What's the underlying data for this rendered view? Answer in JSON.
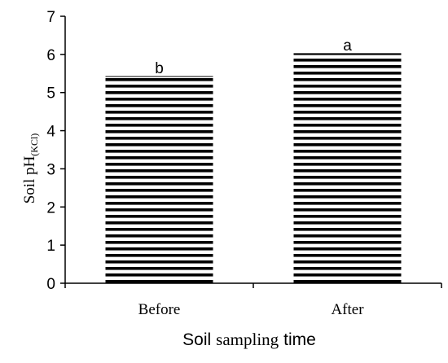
{
  "chart_data": {
    "type": "bar",
    "categories": [
      "Before",
      "After"
    ],
    "values": [
      5.42,
      6.02
    ],
    "significance_letters": [
      "b",
      "a"
    ],
    "ylim": [
      0,
      7
    ],
    "yticks": [
      0,
      1,
      2,
      3,
      4,
      5,
      6,
      7
    ],
    "ylabel": {
      "main": "Soil pH",
      "subscript": "(KCl)"
    },
    "xlabel": {
      "part1": "Soil",
      "part2": "sampling",
      "part3": "time"
    },
    "grid": false,
    "legend": "none",
    "bar_fill": "horizontal stripes",
    "colors": {
      "bar_stripe": "#000000",
      "background": "#ffffff",
      "axis": "#000000"
    }
  }
}
